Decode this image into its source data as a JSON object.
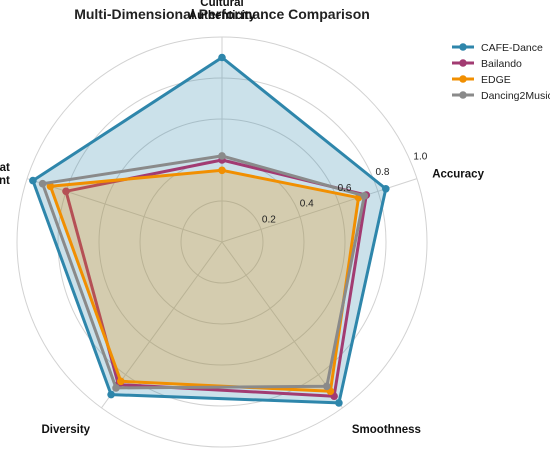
{
  "chart_data": {
    "type": "radar",
    "title": "Multi-Dimensional Performance Comparison",
    "axes": [
      "Accuracy",
      "Cultural\nAuthenticity",
      "Beat\nAlignment",
      "Diversity",
      "Smoothness"
    ],
    "rlim": [
      0,
      1.0
    ],
    "rticks": [
      "0.2",
      "0.4",
      "0.6",
      "0.8",
      "1.0"
    ],
    "rtick_values": [
      0.2,
      0.4,
      0.6,
      0.8,
      1.0
    ],
    "grid": true,
    "legend_position": "top-right",
    "series": [
      {
        "name": "CAFE-Dance",
        "color": "#2e86ab",
        "values": [
          0.84,
          0.9,
          0.97,
          0.92,
          0.97
        ],
        "fill": true
      },
      {
        "name": "Bailando",
        "color": "#a23b72",
        "values": [
          0.74,
          0.4,
          0.8,
          0.86,
          0.93
        ]
      },
      {
        "name": "EDGE",
        "color": "#f18f01",
        "values": [
          0.7,
          0.35,
          0.88,
          0.84,
          0.9
        ],
        "fill": true
      },
      {
        "name": "Dancing2Music",
        "color": "#8a8a8a",
        "values": [
          0.73,
          0.42,
          0.92,
          0.88,
          0.87
        ]
      }
    ]
  }
}
